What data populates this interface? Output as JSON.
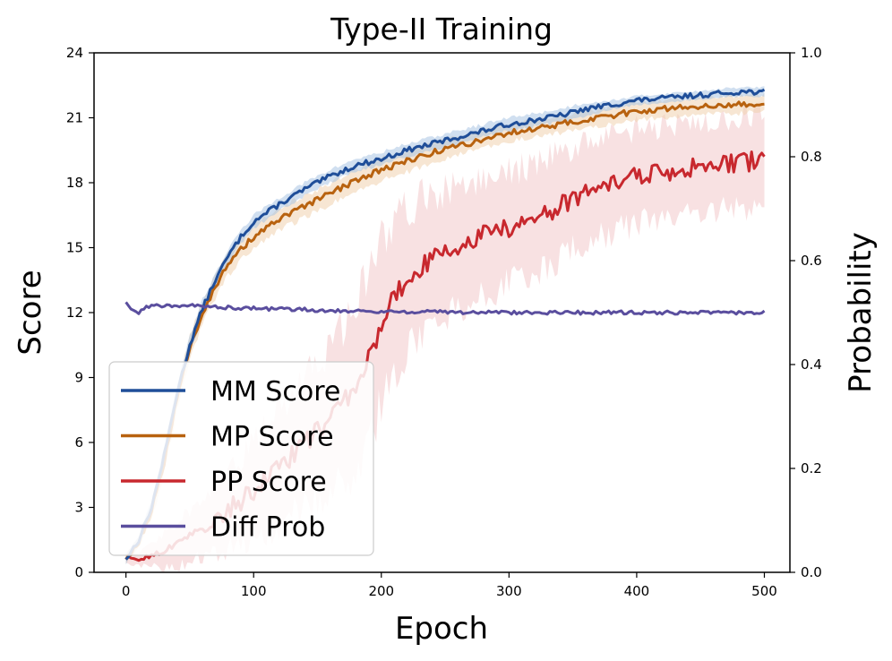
{
  "chart_data": {
    "type": "line",
    "title": "Type-II Training",
    "xlabel": "Epoch",
    "ylabel": "Score",
    "y2label": "Probability",
    "xlim": [
      -25,
      520
    ],
    "ylim": [
      0,
      24
    ],
    "y2lim": [
      0.0,
      1.0
    ],
    "xticks": [
      "0",
      "100",
      "200",
      "300",
      "400",
      "500"
    ],
    "yticks": [
      "0",
      "3",
      "6",
      "9",
      "12",
      "15",
      "18",
      "21",
      "24"
    ],
    "y2ticks": [
      "0.0",
      "0.2",
      "0.4",
      "0.6",
      "0.8",
      "1.0"
    ],
    "grid": false,
    "legend_position": "lower-left",
    "series": [
      {
        "name": "MM Score",
        "color": "#1f4e99",
        "band_color": "#a9c4e3",
        "axis": "left",
        "x": [
          0,
          10,
          20,
          30,
          40,
          50,
          60,
          70,
          80,
          90,
          100,
          120,
          140,
          160,
          180,
          200,
          220,
          240,
          260,
          280,
          300,
          320,
          340,
          360,
          380,
          400,
          420,
          440,
          460,
          480,
          500
        ],
        "values": [
          0.6,
          1.5,
          3.0,
          5.4,
          8.3,
          10.5,
          12.2,
          13.5,
          14.6,
          15.5,
          16.2,
          17.0,
          17.7,
          18.3,
          18.8,
          19.1,
          19.5,
          19.8,
          20.1,
          20.4,
          20.7,
          20.9,
          21.1,
          21.4,
          21.6,
          21.8,
          21.9,
          22.0,
          22.1,
          22.2,
          22.2
        ],
        "band": [
          0.2,
          0.2,
          0.3,
          0.4,
          0.4,
          0.4,
          0.4,
          0.3,
          0.3,
          0.3,
          0.3,
          0.3,
          0.3,
          0.3,
          0.3,
          0.3,
          0.3,
          0.3,
          0.3,
          0.3,
          0.3,
          0.3,
          0.3,
          0.3,
          0.2,
          0.2,
          0.2,
          0.2,
          0.2,
          0.2,
          0.2
        ]
      },
      {
        "name": "MP Score",
        "color": "#b8620f",
        "band_color": "#f1d1ae",
        "axis": "left",
        "x": [
          0,
          10,
          20,
          30,
          40,
          50,
          60,
          70,
          80,
          90,
          100,
          120,
          140,
          160,
          180,
          200,
          220,
          240,
          260,
          280,
          300,
          320,
          340,
          360,
          380,
          400,
          420,
          440,
          460,
          480,
          500
        ],
        "values": [
          0.6,
          1.4,
          2.8,
          5.1,
          8.0,
          10.4,
          12.0,
          13.2,
          14.2,
          14.9,
          15.5,
          16.3,
          16.9,
          17.5,
          18.1,
          18.6,
          19.0,
          19.4,
          19.7,
          20.0,
          20.3,
          20.5,
          20.7,
          20.9,
          21.1,
          21.3,
          21.4,
          21.5,
          21.6,
          21.6,
          21.7
        ],
        "band": [
          0.2,
          0.3,
          0.4,
          0.5,
          0.5,
          0.5,
          0.5,
          0.5,
          0.5,
          0.5,
          0.5,
          0.5,
          0.5,
          0.5,
          0.5,
          0.5,
          0.5,
          0.5,
          0.4,
          0.4,
          0.4,
          0.4,
          0.4,
          0.4,
          0.4,
          0.4,
          0.4,
          0.4,
          0.4,
          0.4,
          0.4
        ]
      },
      {
        "name": "PP Score",
        "color": "#c8282e",
        "band_color": "#f3c9cb",
        "axis": "left",
        "x": [
          0,
          10,
          20,
          30,
          40,
          50,
          60,
          70,
          80,
          90,
          100,
          110,
          120,
          130,
          140,
          150,
          160,
          170,
          180,
          190,
          200,
          210,
          220,
          230,
          240,
          250,
          260,
          280,
          300,
          320,
          340,
          360,
          380,
          400,
          420,
          440,
          460,
          480,
          500
        ],
        "values": [
          0.6,
          0.6,
          0.8,
          1.0,
          1.3,
          1.7,
          2.1,
          2.5,
          2.9,
          3.3,
          3.8,
          4.3,
          4.8,
          5.4,
          6.0,
          6.5,
          7.1,
          7.8,
          8.6,
          9.8,
          11.5,
          12.8,
          13.4,
          14.0,
          14.5,
          14.8,
          15.1,
          15.6,
          15.9,
          16.3,
          16.9,
          17.6,
          17.9,
          18.3,
          18.5,
          18.7,
          18.8,
          18.9,
          19.1
        ],
        "band": [
          0.2,
          0.3,
          0.5,
          0.8,
          1.0,
          1.2,
          1.4,
          1.6,
          1.8,
          2.0,
          2.2,
          2.4,
          2.6,
          2.8,
          3.0,
          3.2,
          3.4,
          3.6,
          3.8,
          4.0,
          3.8,
          3.5,
          3.3,
          3.2,
          3.0,
          2.9,
          2.8,
          2.7,
          2.6,
          2.5,
          2.4,
          2.3,
          2.2,
          2.2,
          2.1,
          2.1,
          2.1,
          2.1,
          2.1
        ]
      },
      {
        "name": "Diff Prob",
        "color": "#5a4e9e",
        "axis": "right",
        "x": [
          0,
          5,
          10,
          15,
          20,
          30,
          40,
          60,
          80,
          100,
          150,
          200,
          250,
          300,
          350,
          400,
          450,
          500
        ],
        "values": [
          0.52,
          0.505,
          0.498,
          0.51,
          0.513,
          0.514,
          0.514,
          0.512,
          0.51,
          0.508,
          0.505,
          0.502,
          0.501,
          0.5,
          0.5,
          0.5,
          0.5,
          0.5
        ]
      }
    ]
  }
}
